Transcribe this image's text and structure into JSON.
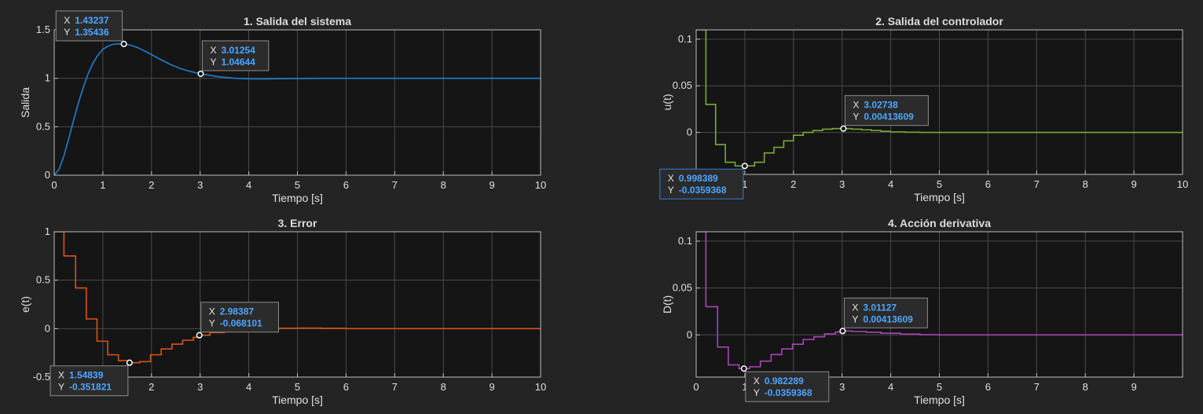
{
  "colors": {
    "figure_bg": "#242424",
    "axes_bg": "#151515",
    "grid": "#4a4a4a",
    "text": "#e0e0e0",
    "datatip_value": "#4da6ff"
  },
  "chart_data": [
    {
      "type": "line",
      "title": "1. Salida del sistema",
      "xlabel": "Tiempo [s]",
      "ylabel": "Salida",
      "xlim": [
        0,
        10
      ],
      "ylim": [
        0,
        1.5
      ],
      "xticks": [
        0,
        1,
        2,
        3,
        4,
        5,
        6,
        7,
        8,
        9,
        10
      ],
      "yticks": [
        0,
        0.5,
        1,
        1.5
      ],
      "xtick_labels": [
        "0",
        "1",
        "2",
        "3",
        "4",
        "5",
        "6",
        "7",
        "8",
        "9",
        "10"
      ],
      "ytick_labels": [
        "0",
        "0.5",
        "1",
        "1.5"
      ],
      "grid": true,
      "color": "#1f7fd0",
      "x": [
        0,
        0.1,
        0.2,
        0.3,
        0.4,
        0.5,
        0.6,
        0.7,
        0.8,
        0.9,
        1.0,
        1.1,
        1.2,
        1.3,
        1.43237,
        1.55,
        1.7,
        1.85,
        2.0,
        2.2,
        2.4,
        2.6,
        2.8,
        3.01254,
        3.2,
        3.4,
        3.6,
        3.8,
        4.0,
        4.3,
        4.6,
        5.0,
        5.5,
        6.0,
        7.0,
        8.0,
        9.0,
        10.0
      ],
      "y": [
        0,
        0.06,
        0.2,
        0.38,
        0.57,
        0.75,
        0.91,
        1.05,
        1.16,
        1.24,
        1.3,
        1.33,
        1.35,
        1.355,
        1.35436,
        1.345,
        1.32,
        1.285,
        1.245,
        1.19,
        1.14,
        1.1,
        1.07,
        1.04644,
        1.03,
        1.015,
        1.005,
        0.998,
        0.995,
        0.994,
        0.996,
        0.998,
        1.0,
        1.0,
        1.0,
        1.0,
        1.0,
        1.0
      ],
      "datatips": [
        {
          "x": 1.43237,
          "y": 1.35436,
          "x_label": "1.43237",
          "y_label": "1.35436",
          "placement": "above-left"
        },
        {
          "x": 3.01254,
          "y": 1.04644,
          "x_label": "3.01254",
          "y_label": "1.04644",
          "placement": "above-right"
        }
      ]
    },
    {
      "type": "line",
      "title": "2. Salida del controlador",
      "xlabel": "Tiempo [s]",
      "ylabel": "u(t)",
      "xlim": [
        0,
        10
      ],
      "ylim": [
        -0.045,
        0.11
      ],
      "xticks": [
        0,
        1,
        2,
        3,
        4,
        5,
        6,
        7,
        8,
        9,
        10
      ],
      "yticks": [
        0,
        0.05,
        0.1
      ],
      "xtick_labels": [
        "0",
        "1",
        "2",
        "3",
        "4",
        "5",
        "6",
        "7",
        "8",
        "9",
        "10"
      ],
      "ytick_labels": [
        "0",
        "0.05",
        "0.1"
      ],
      "grid": true,
      "color": "#77ac30",
      "step": true,
      "x": [
        0,
        0.2,
        0.4,
        0.6,
        0.8,
        1.0,
        1.2,
        1.4,
        1.6,
        1.8,
        2.0,
        2.2,
        2.4,
        2.6,
        2.8,
        3.0,
        3.2,
        3.4,
        3.6,
        3.8,
        4.0,
        4.3,
        4.6,
        5.0,
        6.0,
        7.0,
        8.0,
        9.0,
        10.0
      ],
      "y": [
        0.11,
        0.03,
        -0.013,
        -0.032,
        -0.0359368,
        -0.0359,
        -0.032,
        -0.022,
        -0.016,
        -0.009,
        -0.003,
        0.0,
        0.002,
        0.0035,
        0.0041,
        0.00413609,
        0.0035,
        0.0028,
        0.002,
        0.0012,
        0.0006,
        0.0002,
        0.0,
        0.0,
        0.0,
        0.0,
        0.0,
        0.0,
        0.0
      ],
      "datatips": [
        {
          "x": 0.998389,
          "y": -0.0359368,
          "x_label": "0.998389",
          "y_label": "-0.0359368",
          "placement": "below-left",
          "selected": true
        },
        {
          "x": 3.02738,
          "y": 0.00413609,
          "x_label": "3.02738",
          "y_label": "0.00413609",
          "placement": "above-right"
        }
      ]
    },
    {
      "type": "line",
      "title": "3. Error",
      "xlabel": "Tiempo [s]",
      "ylabel": "e(t)",
      "xlim": [
        0,
        10
      ],
      "ylim": [
        -0.5,
        1
      ],
      "xticks": [
        0,
        1,
        2,
        3,
        4,
        5,
        6,
        7,
        8,
        9,
        10
      ],
      "yticks": [
        -0.5,
        0,
        0.5,
        1
      ],
      "xtick_labels": [
        "0",
        "1",
        "2",
        "3",
        "4",
        "5",
        "6",
        "7",
        "8",
        "9",
        "10"
      ],
      "ytick_labels": [
        "-0.5",
        "0",
        "0.5",
        "1"
      ],
      "grid": true,
      "color": "#d95319",
      "step": true,
      "x": [
        0,
        0.2,
        0.44,
        0.66,
        0.88,
        1.1,
        1.32,
        1.54839,
        1.76,
        1.98,
        2.2,
        2.42,
        2.64,
        2.86,
        2.98387,
        3.2,
        3.5,
        3.8,
        4.2,
        4.6,
        5.0,
        5.5,
        6.0,
        7.0,
        8.0,
        9.0,
        10.0
      ],
      "y": [
        1.0,
        0.75,
        0.42,
        0.1,
        -0.13,
        -0.27,
        -0.33,
        -0.351821,
        -0.34,
        -0.27,
        -0.21,
        -0.16,
        -0.12,
        -0.09,
        -0.068101,
        -0.04,
        -0.02,
        -0.005,
        0.0,
        0.004,
        0.005,
        0.003,
        0.0,
        0.0,
        0.0,
        0.0,
        0.0
      ],
      "datatips": [
        {
          "x": 1.54839,
          "y": -0.351821,
          "x_label": "1.54839",
          "y_label": "-0.351821",
          "placement": "below-left"
        },
        {
          "x": 2.98387,
          "y": -0.068101,
          "x_label": "2.98387",
          "y_label": "-0.068101",
          "placement": "above-right"
        }
      ]
    },
    {
      "type": "line",
      "title": "4. Acción derivativa",
      "xlabel": "Tiempo [s]",
      "ylabel": "D(t)",
      "xlim": [
        0,
        10
      ],
      "ylim": [
        -0.045,
        0.11
      ],
      "xticks": [
        0,
        1,
        2,
        3,
        4,
        5,
        6,
        7,
        8,
        9
      ],
      "yticks": [
        0,
        0.05,
        0.1
      ],
      "xtick_labels": [
        "0",
        "1",
        "2",
        "3",
        "4",
        "5",
        "6",
        "7",
        "8",
        "9"
      ],
      "ytick_labels": [
        "0",
        "0.05",
        "0.1"
      ],
      "grid": true,
      "color": "#a845b5",
      "step": true,
      "x": [
        0,
        0.2,
        0.44,
        0.66,
        0.88,
        1.1,
        1.32,
        1.54,
        1.76,
        1.98,
        2.2,
        2.42,
        2.64,
        2.86,
        3.01127,
        3.2,
        3.5,
        3.8,
        4.2,
        4.6,
        5.0,
        6.0,
        7.0,
        8.0,
        9.0,
        10.0
      ],
      "y": [
        0.11,
        0.03,
        -0.013,
        -0.032,
        -0.0359368,
        -0.034,
        -0.028,
        -0.021,
        -0.015,
        -0.01,
        -0.005,
        -0.002,
        0.001,
        0.003,
        0.00413609,
        0.0036,
        0.0028,
        0.0018,
        0.0008,
        0.0002,
        0.0,
        0.0,
        0.0,
        0.0,
        0.0,
        0.0
      ],
      "datatips": [
        {
          "x": 0.982289,
          "y": -0.0359368,
          "x_label": "0.982289",
          "y_label": "-0.0359368",
          "placement": "below-right"
        },
        {
          "x": 3.01127,
          "y": 0.00413609,
          "x_label": "3.01127",
          "y_label": "0.00413609",
          "placement": "above-right"
        }
      ]
    }
  ]
}
